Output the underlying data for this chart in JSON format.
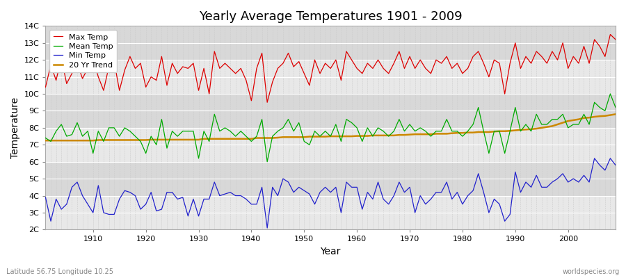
{
  "title": "Yearly Average Temperatures 1901 - 2009",
  "xlabel": "Year",
  "ylabel": "Temperature",
  "subtitle_left": "Latitude 56.75 Longitude 10.25",
  "subtitle_right": "worldspecies.org",
  "year_start": 1901,
  "year_end": 2009,
  "yticks": [
    2,
    3,
    4,
    5,
    6,
    7,
    8,
    9,
    10,
    11,
    12,
    13,
    14
  ],
  "ytick_labels": [
    "2C",
    "3C",
    "4C",
    "5C",
    "6C",
    "7C",
    "8C",
    "9C",
    "10C",
    "11C",
    "12C",
    "13C",
    "14C"
  ],
  "xticks": [
    1910,
    1920,
    1930,
    1940,
    1950,
    1960,
    1970,
    1980,
    1990,
    2000
  ],
  "color_max": "#dd0000",
  "color_mean": "#00aa00",
  "color_min": "#2222cc",
  "color_trend": "#cc8800",
  "legend_labels": [
    "Max Temp",
    "Mean Temp",
    "Min Temp",
    "20 Yr Trend"
  ],
  "bg_color_light": "#e8e8e8",
  "bg_color_dark": "#d8d8d8",
  "grid_color": "#ffffff",
  "grid_minor_color": "#dddddd",
  "max_temps": [
    10.4,
    11.7,
    10.8,
    12.1,
    10.6,
    11.2,
    11.8,
    10.9,
    11.5,
    12.0,
    11.0,
    10.2,
    11.6,
    11.9,
    10.2,
    11.4,
    12.2,
    11.5,
    11.8,
    10.4,
    11.0,
    10.8,
    12.2,
    10.5,
    11.8,
    11.2,
    11.6,
    11.5,
    11.8,
    10.2,
    11.5,
    10.0,
    12.5,
    11.5,
    11.8,
    11.5,
    11.2,
    11.5,
    10.8,
    9.6,
    11.5,
    12.4,
    9.5,
    10.7,
    11.5,
    11.8,
    12.4,
    11.6,
    11.9,
    11.2,
    10.5,
    12.0,
    11.2,
    11.8,
    11.5,
    12.0,
    10.8,
    12.5,
    12.0,
    11.5,
    11.2,
    11.8,
    11.5,
    12.0,
    11.5,
    11.2,
    11.8,
    12.5,
    11.5,
    12.2,
    11.5,
    12.0,
    11.5,
    11.2,
    12.0,
    11.8,
    12.2,
    11.5,
    11.8,
    11.2,
    11.5,
    12.2,
    12.5,
    11.8,
    11.0,
    12.0,
    11.8,
    10.0,
    11.8,
    13.0,
    11.5,
    12.2,
    11.8,
    12.5,
    12.2,
    11.8,
    12.5,
    12.0,
    13.0,
    11.5,
    12.2,
    11.8,
    12.8,
    11.8,
    13.2,
    12.8,
    12.2,
    13.5,
    13.2
  ],
  "mean_temps": [
    7.4,
    7.2,
    7.8,
    8.2,
    7.5,
    7.6,
    8.3,
    7.5,
    7.8,
    6.5,
    7.8,
    7.2,
    8.0,
    8.0,
    7.5,
    8.0,
    7.8,
    7.5,
    7.2,
    6.5,
    7.5,
    7.0,
    8.5,
    6.8,
    7.8,
    7.5,
    7.8,
    7.8,
    7.8,
    6.2,
    7.8,
    7.2,
    8.8,
    7.8,
    8.0,
    7.8,
    7.5,
    7.8,
    7.5,
    7.2,
    7.5,
    8.5,
    6.0,
    7.5,
    7.8,
    8.0,
    8.5,
    7.8,
    8.3,
    7.2,
    7.0,
    7.8,
    7.5,
    7.8,
    7.5,
    8.2,
    7.2,
    8.5,
    8.3,
    8.0,
    7.2,
    8.0,
    7.5,
    8.0,
    7.8,
    7.5,
    7.8,
    8.5,
    7.8,
    8.2,
    7.8,
    8.0,
    7.8,
    7.5,
    7.8,
    7.8,
    8.5,
    7.8,
    7.8,
    7.5,
    7.8,
    8.2,
    9.2,
    7.8,
    6.5,
    7.8,
    7.8,
    6.5,
    7.8,
    9.2,
    7.8,
    8.2,
    7.8,
    8.8,
    8.2,
    8.2,
    8.5,
    8.5,
    8.8,
    8.0,
    8.2,
    8.2,
    8.8,
    8.2,
    9.5,
    9.2,
    9.0,
    10.0,
    9.2
  ],
  "min_temps": [
    3.9,
    2.5,
    3.8,
    3.2,
    3.5,
    4.5,
    4.8,
    4.0,
    3.5,
    3.0,
    4.6,
    3.0,
    2.9,
    2.9,
    3.8,
    4.3,
    4.2,
    4.0,
    3.2,
    3.5,
    4.2,
    3.1,
    3.2,
    4.2,
    4.2,
    3.8,
    3.9,
    2.8,
    3.8,
    2.8,
    3.8,
    3.8,
    4.8,
    4.0,
    4.1,
    4.2,
    4.0,
    4.0,
    3.8,
    3.5,
    3.5,
    4.5,
    2.1,
    4.5,
    4.0,
    5.0,
    4.8,
    4.2,
    4.5,
    4.3,
    4.1,
    3.5,
    4.2,
    4.5,
    4.2,
    4.5,
    3.0,
    4.8,
    4.5,
    4.5,
    3.2,
    4.2,
    3.8,
    4.8,
    3.8,
    3.5,
    4.0,
    4.8,
    4.2,
    4.5,
    3.0,
    4.0,
    3.5,
    3.8,
    4.2,
    4.2,
    4.8,
    3.8,
    4.2,
    3.5,
    4.0,
    4.3,
    5.3,
    4.2,
    3.0,
    3.8,
    3.5,
    2.5,
    2.9,
    5.4,
    4.2,
    4.8,
    4.5,
    5.2,
    4.5,
    4.5,
    4.8,
    5.0,
    5.3,
    4.8,
    5.0,
    4.8,
    5.2,
    4.8,
    6.2,
    5.8,
    5.5,
    6.2,
    5.8
  ],
  "trend_temps": [
    7.25,
    7.25,
    7.25,
    7.25,
    7.25,
    7.25,
    7.25,
    7.25,
    7.25,
    7.25,
    7.28,
    7.28,
    7.28,
    7.28,
    7.28,
    7.28,
    7.28,
    7.28,
    7.28,
    7.28,
    7.3,
    7.3,
    7.3,
    7.3,
    7.3,
    7.3,
    7.3,
    7.3,
    7.3,
    7.3,
    7.35,
    7.35,
    7.35,
    7.35,
    7.35,
    7.35,
    7.35,
    7.35,
    7.35,
    7.35,
    7.4,
    7.4,
    7.4,
    7.4,
    7.42,
    7.45,
    7.45,
    7.45,
    7.45,
    7.45,
    7.48,
    7.48,
    7.48,
    7.48,
    7.5,
    7.5,
    7.5,
    7.5,
    7.5,
    7.52,
    7.52,
    7.52,
    7.55,
    7.55,
    7.55,
    7.55,
    7.55,
    7.58,
    7.58,
    7.6,
    7.62,
    7.62,
    7.62,
    7.62,
    7.65,
    7.65,
    7.65,
    7.68,
    7.7,
    7.7,
    7.72,
    7.72,
    7.75,
    7.75,
    7.75,
    7.78,
    7.8,
    7.8,
    7.82,
    7.85,
    7.88,
    7.9,
    7.92,
    7.95,
    8.0,
    8.05,
    8.1,
    8.2,
    8.3,
    8.4,
    8.45,
    8.5,
    8.58,
    8.6,
    8.65,
    8.68,
    8.7,
    8.75,
    8.8
  ]
}
